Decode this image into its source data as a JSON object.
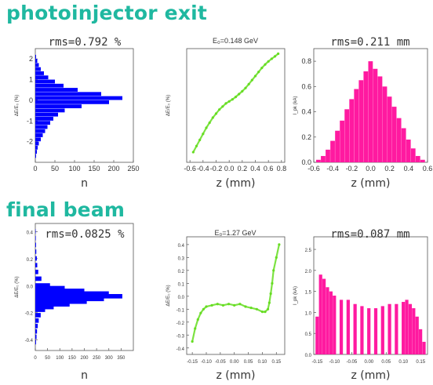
{
  "sections": [
    {
      "title": "photoinjector exit"
    },
    {
      "title": "final beam"
    }
  ],
  "colors": {
    "title": "#1fb8a0",
    "blue": "#0000ff",
    "green": "#66dd22",
    "magenta": "#ff1aa0",
    "axis": "#555555"
  },
  "chart_data": [
    {
      "id": "p1",
      "type": "bar",
      "orientation": "horizontal",
      "title": "rms=0.792 %",
      "xlabel": "n",
      "ylabel": "ΔE/E₀ (%)",
      "xlim": [
        0,
        250
      ],
      "ylim": [
        -3,
        2.5
      ],
      "xticks": [
        "0",
        "50",
        "100",
        "150",
        "200",
        "250"
      ],
      "yticks": [
        "-2",
        "-1",
        "0",
        "1",
        "2"
      ],
      "ytick_values": [
        -2,
        -1,
        0,
        1,
        2
      ],
      "color": "#0000ff",
      "y": [
        -2.7,
        -2.5,
        -2.3,
        -2.1,
        -1.9,
        -1.7,
        -1.5,
        -1.3,
        -1.1,
        -0.9,
        -0.7,
        -0.5,
        -0.3,
        -0.1,
        0.1,
        0.3,
        0.5,
        0.7,
        0.9,
        1.1,
        1.3,
        1.5,
        1.7,
        1.9,
        2.1
      ],
      "values": [
        2,
        4,
        6,
        9,
        14,
        19,
        25,
        31,
        38,
        46,
        58,
        75,
        118,
        188,
        222,
        168,
        108,
        72,
        50,
        33,
        22,
        14,
        9,
        5,
        2
      ]
    },
    {
      "id": "p2",
      "type": "scatter",
      "title": "E₀=0.148 GeV",
      "xlabel": "z (mm)",
      "ylabel": "ΔE/E₀ (%)",
      "xlim": [
        -0.65,
        0.85
      ],
      "ylim": [
        -3,
        2.6
      ],
      "xticks": [
        "-0.6",
        "-0.4",
        "-0.2",
        "0.0",
        "0.2",
        "0.4",
        "0.6",
        "0.8"
      ],
      "xtick_values": [
        -0.6,
        -0.4,
        -0.2,
        0.0,
        0.2,
        0.4,
        0.6,
        0.8
      ],
      "color": "#66dd22",
      "x": [
        -0.55,
        -0.5,
        -0.45,
        -0.4,
        -0.35,
        -0.3,
        -0.25,
        -0.2,
        -0.15,
        -0.1,
        -0.05,
        0.0,
        0.05,
        0.1,
        0.15,
        0.2,
        0.25,
        0.3,
        0.35,
        0.4,
        0.45,
        0.5,
        0.55,
        0.6,
        0.65,
        0.7,
        0.75
      ],
      "values": [
        -2.5,
        -2.2,
        -1.9,
        -1.6,
        -1.3,
        -1.05,
        -0.8,
        -0.6,
        -0.4,
        -0.25,
        -0.1,
        0.0,
        0.1,
        0.22,
        0.36,
        0.5,
        0.66,
        0.85,
        1.05,
        1.25,
        1.45,
        1.65,
        1.82,
        1.97,
        2.1,
        2.22,
        2.35
      ]
    },
    {
      "id": "p3",
      "type": "bar",
      "title": "rms=0.211 mm",
      "xlabel": "z (mm)",
      "ylabel": "I_pk (kA)",
      "xlim": [
        -0.6,
        0.6
      ],
      "ylim": [
        0,
        0.9
      ],
      "xticks": [
        "-0.6",
        "-0.4",
        "-0.2",
        "0.0",
        "0.2",
        "0.4",
        "0.6"
      ],
      "xtick_values": [
        -0.6,
        -0.4,
        -0.2,
        0.0,
        0.2,
        0.4,
        0.6
      ],
      "yticks": [
        "0.0",
        "0.2",
        "0.4",
        "0.6",
        "0.8"
      ],
      "ytick_values": [
        0.0,
        0.2,
        0.4,
        0.6,
        0.8
      ],
      "color": "#ff1aa0",
      "x": [
        -0.55,
        -0.5,
        -0.45,
        -0.4,
        -0.35,
        -0.3,
        -0.25,
        -0.2,
        -0.15,
        -0.1,
        -0.05,
        0.0,
        0.05,
        0.1,
        0.15,
        0.2,
        0.25,
        0.3,
        0.35,
        0.4,
        0.45,
        0.5,
        0.55
      ],
      "values": [
        0.02,
        0.05,
        0.1,
        0.17,
        0.25,
        0.33,
        0.42,
        0.5,
        0.58,
        0.65,
        0.72,
        0.8,
        0.74,
        0.68,
        0.6,
        0.52,
        0.44,
        0.35,
        0.27,
        0.18,
        0.11,
        0.05,
        0.02
      ]
    },
    {
      "id": "p4",
      "type": "bar",
      "orientation": "horizontal",
      "title": "rms=0.0825 %",
      "xlabel": "n",
      "ylabel": "ΔE/E₀ (%)",
      "xlim": [
        0,
        400
      ],
      "ylim": [
        -0.48,
        0.46
      ],
      "xticks": [
        "0",
        "50",
        "100",
        "150",
        "200",
        "250",
        "300",
        "350"
      ],
      "yticks": [
        "-0.4",
        "-0.2",
        "0.0",
        "0.2",
        "0.4"
      ],
      "ytick_values": [
        -0.4,
        -0.2,
        0.0,
        0.2,
        0.4
      ],
      "color": "#0000ff",
      "y": [
        -0.42,
        -0.38,
        -0.34,
        -0.3,
        -0.26,
        -0.22,
        -0.18,
        -0.16,
        -0.14,
        -0.12,
        -0.1,
        -0.08,
        -0.06,
        -0.04,
        -0.02,
        0.0,
        0.05,
        0.1,
        0.15,
        0.2,
        0.25,
        0.3,
        0.35,
        0.4
      ],
      "values": [
        3,
        5,
        7,
        10,
        14,
        22,
        40,
        75,
        140,
        210,
        280,
        355,
        300,
        200,
        120,
        60,
        25,
        12,
        8,
        6,
        4,
        3,
        2,
        1
      ]
    },
    {
      "id": "p5",
      "type": "scatter",
      "title": "E₀=1.27 GeV",
      "xlabel": "z (mm)",
      "ylabel": "ΔE/E₀ (%)",
      "xlim": [
        -0.17,
        0.18
      ],
      "ylim": [
        -0.45,
        0.46
      ],
      "xticks": [
        "-0.15",
        "-0.10",
        "-0.05",
        "0.00",
        "0.05",
        "0.10",
        "0.15"
      ],
      "xtick_values": [
        -0.15,
        -0.1,
        -0.05,
        0.0,
        0.05,
        0.1,
        0.15
      ],
      "yticks": [
        "-0.4",
        "-0.3",
        "-0.2",
        "-0.1",
        "0.0",
        "0.1",
        "0.2",
        "0.3",
        "0.4"
      ],
      "ytick_values": [
        -0.4,
        -0.3,
        -0.2,
        -0.1,
        0.0,
        0.1,
        0.2,
        0.3,
        0.4
      ],
      "color": "#66dd22",
      "x": [
        -0.15,
        -0.14,
        -0.13,
        -0.12,
        -0.11,
        -0.1,
        -0.08,
        -0.06,
        -0.04,
        -0.02,
        0.0,
        0.02,
        0.04,
        0.06,
        0.08,
        0.1,
        0.11,
        0.12,
        0.125,
        0.13,
        0.135,
        0.14,
        0.15,
        0.16
      ],
      "values": [
        -0.35,
        -0.25,
        -0.18,
        -0.13,
        -0.1,
        -0.08,
        -0.07,
        -0.06,
        -0.07,
        -0.06,
        -0.07,
        -0.06,
        -0.08,
        -0.09,
        -0.1,
        -0.12,
        -0.12,
        -0.1,
        -0.05,
        0.02,
        0.1,
        0.2,
        0.3,
        0.4
      ]
    },
    {
      "id": "p6",
      "type": "bar",
      "title": "rms=0.087 mm",
      "xlabel": "z (mm)",
      "ylabel": "I_pk (kA)",
      "xlim": [
        -0.16,
        0.17
      ],
      "ylim": [
        0,
        2.8
      ],
      "xticks": [
        "-0.15",
        "-0.10",
        "-0.05",
        "0.00",
        "0.05",
        "0.10",
        "0.15"
      ],
      "xtick_values": [
        -0.15,
        -0.1,
        -0.05,
        0.0,
        0.05,
        0.1,
        0.15
      ],
      "yticks": [
        "0.0",
        "0.5",
        "1.0",
        "1.5",
        "2.0",
        "2.5"
      ],
      "ytick_values": [
        0.0,
        0.5,
        1.0,
        1.5,
        2.0,
        2.5
      ],
      "color": "#ff1aa0",
      "x": [
        -0.15,
        -0.14,
        -0.13,
        -0.12,
        -0.11,
        -0.1,
        -0.08,
        -0.06,
        -0.04,
        -0.02,
        0.0,
        0.02,
        0.04,
        0.06,
        0.08,
        0.1,
        0.11,
        0.12,
        0.13,
        0.14,
        0.15,
        0.16
      ],
      "values": [
        0.9,
        1.9,
        1.8,
        1.6,
        1.5,
        1.4,
        1.3,
        1.3,
        1.2,
        1.15,
        1.1,
        1.1,
        1.15,
        1.2,
        1.2,
        1.25,
        1.3,
        1.2,
        1.1,
        0.9,
        0.6,
        0.3
      ]
    }
  ]
}
